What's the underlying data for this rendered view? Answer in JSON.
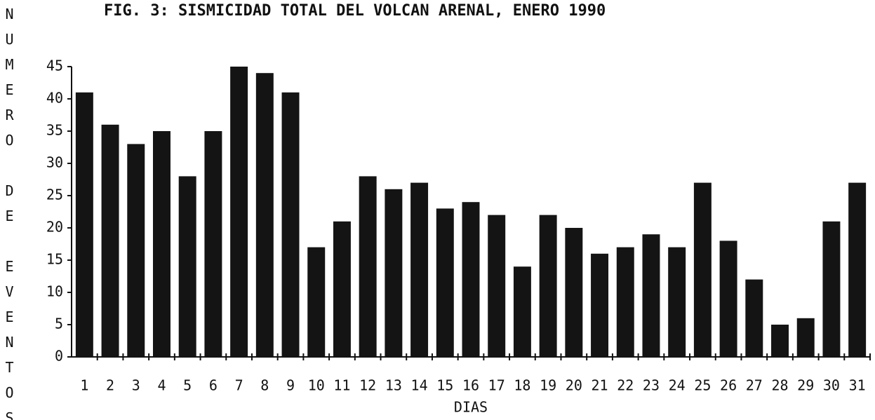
{
  "chart_data": {
    "type": "bar",
    "title": "FIG. 3:   SISMICIDAD TOTAL DEL VOLCAN ARENAL, ENERO 1990",
    "y_label": "NUMERO DE EVENTOS",
    "x_label": "DIAS",
    "categories": [
      "1",
      "2",
      "3",
      "4",
      "5",
      "6",
      "7",
      "8",
      "9",
      "10",
      "11",
      "12",
      "13",
      "14",
      "15",
      "16",
      "17",
      "18",
      "19",
      "20",
      "21",
      "22",
      "23",
      "24",
      "25",
      "26",
      "27",
      "28",
      "29",
      "30",
      "31"
    ],
    "values": [
      41,
      36,
      33,
      35,
      28,
      35,
      45,
      44,
      41,
      17,
      21,
      28,
      26,
      27,
      23,
      24,
      22,
      14,
      22,
      20,
      16,
      17,
      19,
      17,
      27,
      18,
      12,
      5,
      6,
      21,
      27
    ],
    "color": "#141414",
    "ylim": [
      0,
      45
    ],
    "yticks": [
      0,
      5,
      10,
      15,
      20,
      25,
      30,
      35,
      40,
      45
    ],
    "grid": false
  }
}
